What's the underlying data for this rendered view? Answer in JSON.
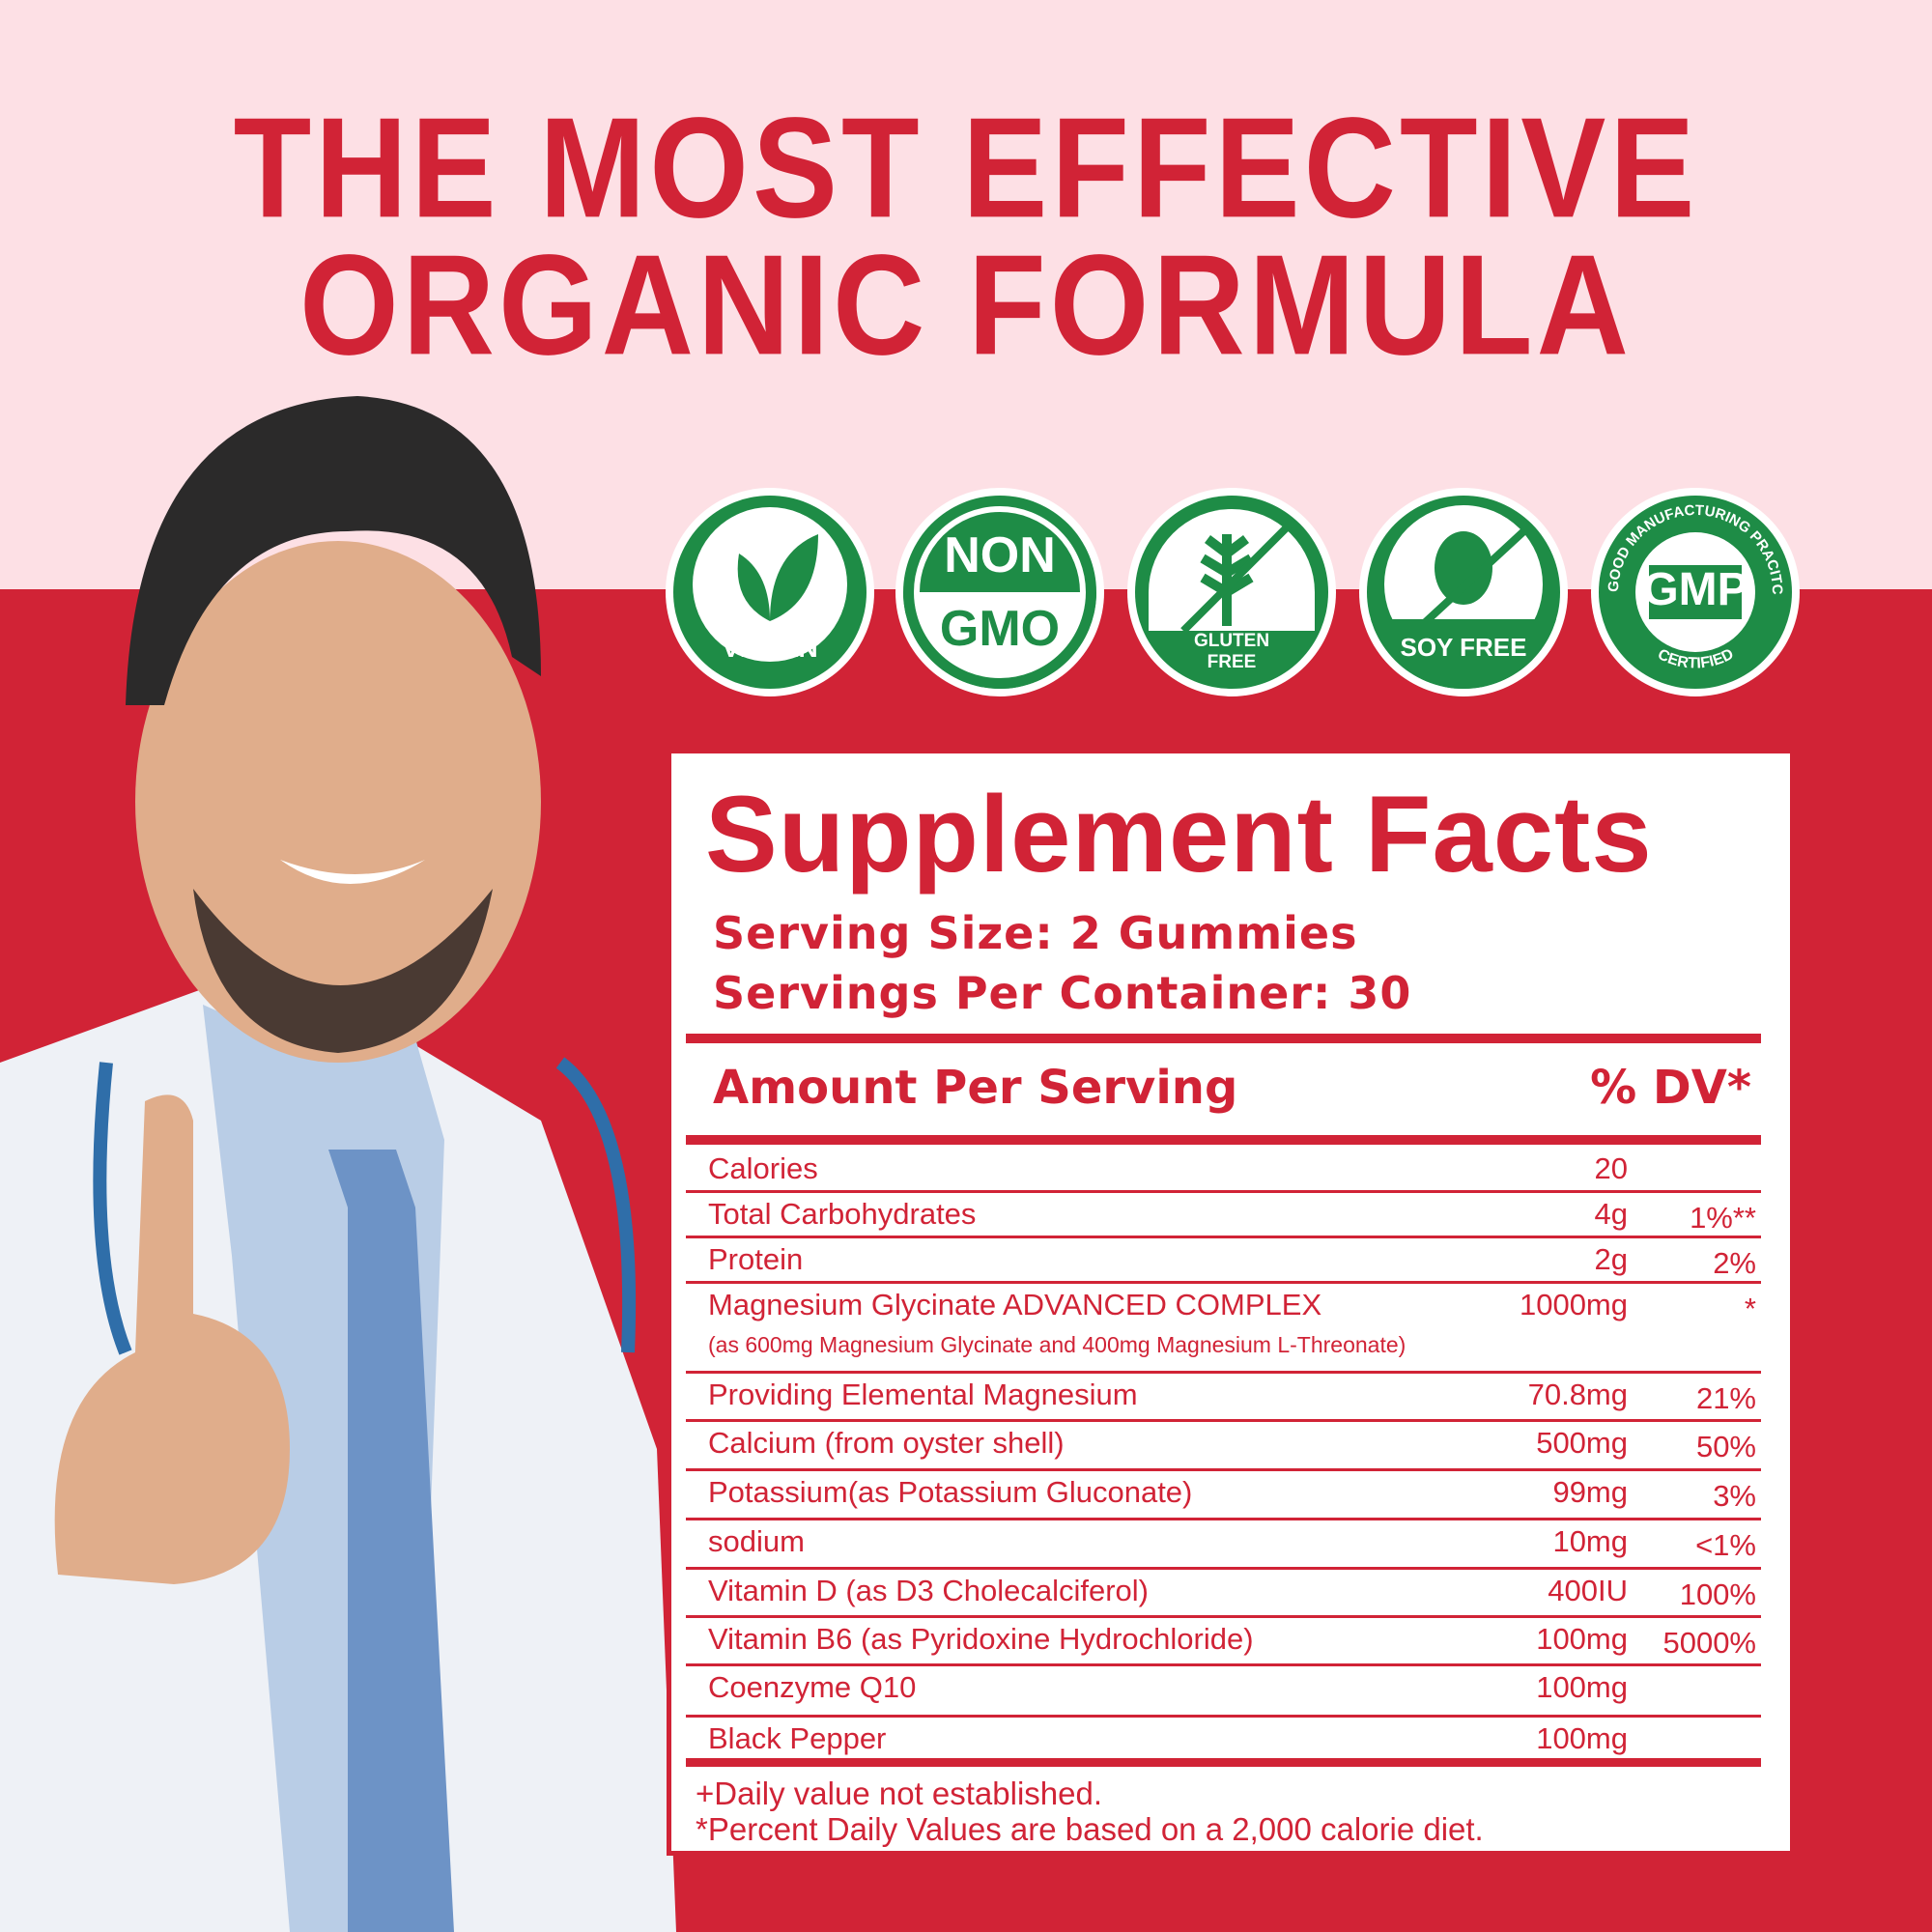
{
  "headline": {
    "line1": "THE MOST EFFECTIVE",
    "line2": "ORGANIC FORMULA"
  },
  "colors": {
    "red": "#d12336",
    "pink": "#fde0e5",
    "green": "#1e8c46"
  },
  "badges": [
    {
      "icon": "leaf-icon",
      "label": "VEGAN"
    },
    {
      "icon": "non-gmo-icon",
      "top": "NON",
      "bottom": "GMO"
    },
    {
      "icon": "wheat-crossed-icon",
      "line1": "GLUTEN",
      "line2": "FREE"
    },
    {
      "icon": "soybean-crossed-icon",
      "label": "SOY FREE"
    },
    {
      "icon": "gmp-seal-icon",
      "center": "GMP",
      "ring_top": "GOOD MANUFACTURING PRACITCE",
      "ring_bottom": "CERTIFIED"
    }
  ],
  "facts": {
    "title": "Supplement Facts",
    "serving_size": "Serving Size: 2 Gummies",
    "servings_per_container": "Servings Per Container: 30",
    "amount_header": "Amount Per Serving",
    "dv_header": "% DV*",
    "rows": [
      {
        "name": "Calories",
        "amount": "20",
        "dv": ""
      },
      {
        "name": "Total Carbohydrates",
        "amount": "4g",
        "dv": "1%**"
      },
      {
        "name": "Protein",
        "amount": "2g",
        "dv": "2%"
      },
      {
        "name": "Magnesium Glycinate ADVANCED COMPLEX",
        "sub": "(as 600mg Magnesium Glycinate and 400mg Magnesium L-Threonate)",
        "amount": "1000mg",
        "dv": "*"
      },
      {
        "name": "Providing Elemental Magnesium",
        "amount": "70.8mg",
        "dv": "21%"
      },
      {
        "name": "Calcium (from oyster shell)",
        "amount": "500mg",
        "dv": "50%"
      },
      {
        "name": "Potassium(as Potassium Gluconate)",
        "amount": "99mg",
        "dv": "3%"
      },
      {
        "name": "sodium",
        "amount": "10mg",
        "dv": "<1%"
      },
      {
        "name": "Vitamin D (as D3 Cholecalciferol)",
        "amount": "400IU",
        "dv": "100%"
      },
      {
        "name": "Vitamin B6 (as Pyridoxine Hydrochloride)",
        "amount": "100mg",
        "dv": "5000%"
      },
      {
        "name": "Coenzyme Q10",
        "amount": "100mg",
        "dv": ""
      },
      {
        "name": "Black Pepper",
        "amount": "100mg",
        "dv": ""
      }
    ],
    "footnote1": "+Daily value not established.",
    "footnote2": "*Percent Daily Values are based on a 2,000 calorie diet."
  }
}
